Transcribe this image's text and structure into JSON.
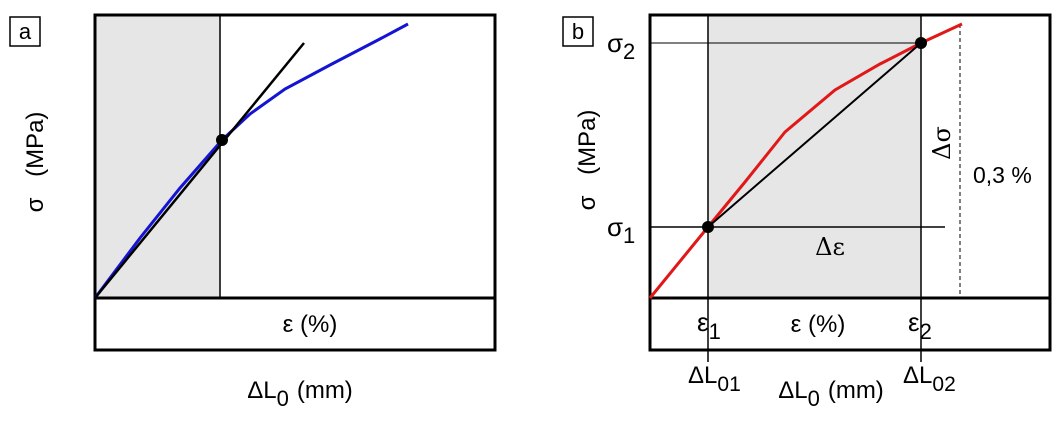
{
  "panel_a": {
    "tag": "a",
    "y_label_symbol": "σ",
    "y_label_unit": "(MPa)",
    "x_inner_label": "ε (%)",
    "x_outer_label_main": "ΔL",
    "x_outer_label_sub": "0",
    "x_outer_label_unit": "(mm)"
  },
  "panel_b": {
    "tag": "b",
    "y_label_symbol": "σ",
    "y_label_unit": "(MPa)",
    "sigma1_main": "σ",
    "sigma1_sub": "1",
    "sigma2_main": "σ",
    "sigma2_sub": "2",
    "eps1_main": "ε",
    "eps1_sub": "1",
    "eps2_main": "ε",
    "eps2_sub": "2",
    "x_inner_label": "ε (%)",
    "delta_eps": "Δε",
    "delta_sigma": "Δσ",
    "offset_label": "0,3 %",
    "dl01_main": "ΔL",
    "dl01_sub": "01",
    "dl02_main": "ΔL",
    "dl02_sub": "02",
    "x_outer_label_main": "ΔL",
    "x_outer_label_sub": "0",
    "x_outer_label_unit": "(mm)"
  },
  "colors": {
    "shade": "#e6e6e6",
    "curve_a": "#1414d2",
    "curve_b": "#e01818",
    "line": "#000000"
  }
}
